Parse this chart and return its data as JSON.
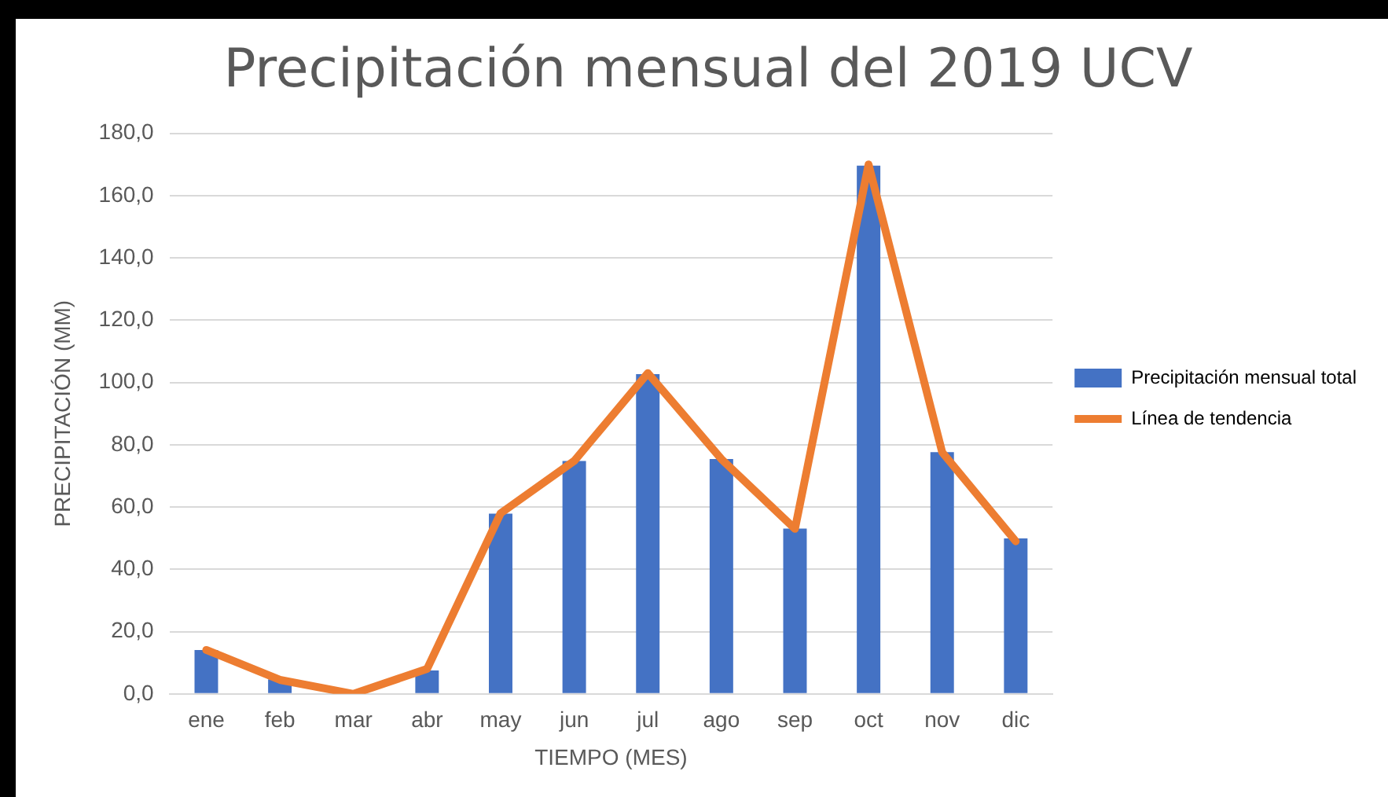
{
  "chart_data": {
    "type": "bar",
    "title": "Precipitación mensual del 2019 UCV",
    "xlabel": "TIEMPO (MES)",
    "ylabel": "PRECIPITACIÓN (MM)",
    "categories": [
      "ene",
      "feb",
      "mar",
      "abr",
      "may",
      "jun",
      "jul",
      "ago",
      "sep",
      "oct",
      "nov",
      "dic"
    ],
    "series": [
      {
        "name": "Precipitación mensual total",
        "color": "#4472c4",
        "values": [
          14.1,
          4.7,
          0,
          7.5,
          57.9,
          74.8,
          102.7,
          75.4,
          53.1,
          169.6,
          77.6,
          49.9
        ]
      },
      {
        "name": "Línea de tendencia",
        "type": "line",
        "color": "#ed7d31",
        "values": [
          14.1,
          4.5,
          0,
          8,
          58,
          74.8,
          103,
          75.4,
          53,
          170,
          77.6,
          49
        ]
      }
    ],
    "ylim": [
      0,
      180
    ],
    "yticks": [
      {
        "value": 0,
        "label": "0,0"
      },
      {
        "value": 20,
        "label": "20,0"
      },
      {
        "value": 40,
        "label": "40,0"
      },
      {
        "value": 60,
        "label": "60,0"
      },
      {
        "value": 80,
        "label": "80,0"
      },
      {
        "value": 100,
        "label": "100,0"
      },
      {
        "value": 120,
        "label": "120,0"
      },
      {
        "value": 140,
        "label": "140,0"
      },
      {
        "value": 160,
        "label": "160,0"
      },
      {
        "value": 180,
        "label": "180,0"
      }
    ],
    "grid": "y",
    "legend": "right",
    "marker": "none"
  }
}
